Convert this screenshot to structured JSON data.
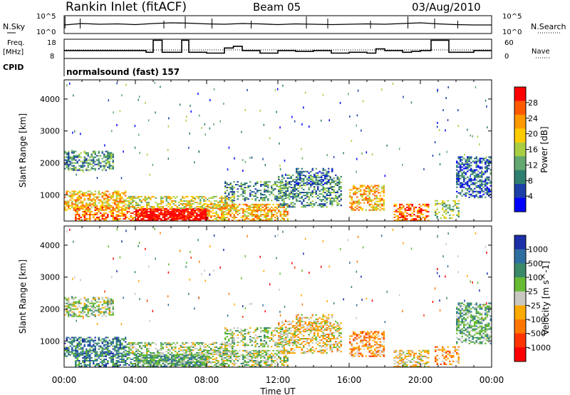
{
  "header": {
    "title": "Rankin Inlet (fitACF)",
    "beam": "Beam 05",
    "date": "03/Aug/2010",
    "cpid_label": "CPID",
    "cpid_value": "normalsound (fast) 157"
  },
  "noise_panel": {
    "left_label": "N.Sky",
    "right_label": "N.Search",
    "ticks": [
      "10^5",
      "10^0"
    ]
  },
  "freq_panel": {
    "left_label": "Freq.",
    "left_unit": "[MHz]",
    "right_label": "Nave",
    "left_ticks": [
      "18",
      "8"
    ],
    "right_ticks": [
      "60",
      "0"
    ]
  },
  "x_axis": {
    "label": "Time UT",
    "ticks": [
      "00:00",
      "04:00",
      "08:00",
      "12:00",
      "16:00",
      "20:00",
      "00:00"
    ]
  },
  "y_axis": {
    "label": "Slant Range [km]",
    "ticks": [
      "4000",
      "3000",
      "2000",
      "1000"
    ]
  },
  "power_colorbar": {
    "label": "Power [dB]",
    "ticks": [
      "28",
      "24",
      "20",
      "16",
      "12",
      "8",
      "4"
    ],
    "colors": [
      "#ff0000",
      "#ff5a00",
      "#ff9900",
      "#ffcc00",
      "#a8cf44",
      "#62a870",
      "#2f7f70",
      "#1c3fa8",
      "#0000ff"
    ]
  },
  "velocity_colorbar": {
    "label": "Velocity [m s^-1]",
    "ticks": [
      "1000",
      "500",
      "100",
      "25",
      "-25",
      "-100",
      "-500",
      "-1000"
    ],
    "colors": [
      "#1c2fa8",
      "#2f6fa0",
      "#3a8a6a",
      "#66bb33",
      "#c8c8c0",
      "#ffaa00",
      "#ff7700",
      "#ff3300",
      "#ff0000"
    ]
  },
  "chart_data": [
    {
      "type": "line",
      "name": "noise",
      "x_hours": [
        0,
        1,
        2,
        3,
        4,
        5,
        6,
        7,
        8,
        9,
        10,
        11,
        12,
        13,
        14,
        15,
        16,
        17,
        18,
        19,
        20,
        21,
        22,
        23,
        24
      ],
      "series": [
        {
          "name": "N.Sky",
          "values": [
            1.2,
            1.6,
            1.4,
            1.5,
            1.3,
            1.6,
            1.8,
            1.7,
            1.5,
            1.4,
            1.6,
            1.5,
            1.3,
            1.5,
            1.4,
            1.3,
            1.4,
            1.5,
            1.4,
            1.6,
            1.8,
            1.5,
            1.3,
            1.2,
            1.2
          ]
        }
      ],
      "ylim": [
        0,
        5
      ]
    },
    {
      "type": "line",
      "name": "frequency",
      "x_hours": [
        0,
        1,
        2,
        3,
        4,
        4.6,
        5.0,
        5.5,
        6.6,
        7.0,
        8.0,
        9.0,
        9.5,
        10.0,
        11.0,
        12.0,
        13.0,
        14.0,
        15.0,
        16.0,
        17.0,
        17.5,
        18.0,
        19.0,
        19.5,
        20.0,
        20.6,
        21.6,
        22.0,
        23.0,
        24.0
      ],
      "series": [
        {
          "name": "Freq [MHz]",
          "values": [
            12.0,
            12.0,
            12.0,
            12.0,
            12.0,
            11.0,
            18.0,
            11.0,
            18.0,
            11.0,
            10.5,
            13.5,
            14.5,
            12.0,
            10.5,
            12.0,
            11.5,
            12.0,
            10.5,
            11.0,
            10.5,
            13.0,
            12.0,
            11.0,
            11.5,
            12.0,
            18.0,
            11.0,
            11.0,
            12.0,
            12.0
          ]
        }
      ],
      "ylim": [
        8,
        18
      ]
    },
    {
      "type": "heatmap",
      "name": "power",
      "xlabel": "Time UT",
      "ylabel": "Slant Range [km]",
      "xlim_hours": [
        0,
        24
      ],
      "ylim_km": [
        180,
        4600
      ],
      "colorbar": "Power [dB]",
      "clim": [
        0,
        30
      ]
    },
    {
      "type": "heatmap",
      "name": "velocity",
      "xlabel": "Time UT",
      "ylabel": "Slant Range [km]",
      "xlim_hours": [
        0,
        24
      ],
      "ylim_km": [
        180,
        4600
      ],
      "colorbar": "Velocity [m s^-1]",
      "clim": [
        -1000,
        1000
      ]
    }
  ]
}
